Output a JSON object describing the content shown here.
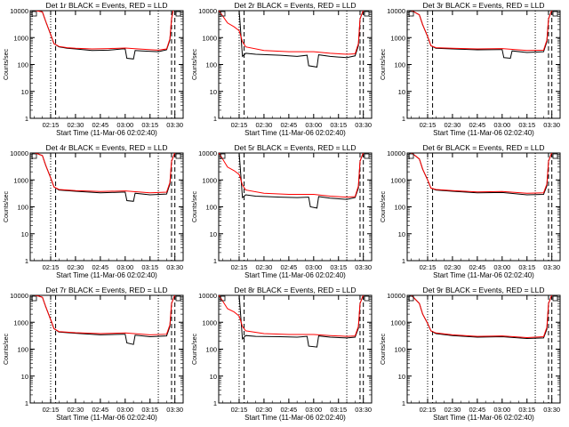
{
  "page": {
    "background": "#ffffff",
    "axis_color": "#000000",
    "events_color": "#000000",
    "lld_color": "#ff0000"
  },
  "chart_data": [
    {
      "type": "line",
      "title": "Det 1r BLACK = Events, RED = LLD",
      "xlabel": "Start Time (11-Mar-06 02:02:40)",
      "ylabel": "Counts/sec",
      "x_ticks": [
        "02:15",
        "02:30",
        "02:45",
        "03:00",
        "03:15",
        "03:30"
      ],
      "y_ticks": [
        "1",
        "10",
        "100",
        "1000",
        "10000"
      ],
      "ylim": [
        1,
        10000
      ],
      "yscale": "log",
      "series": [
        {
          "name": "Events",
          "color": "#000000",
          "x": [
            "02:05",
            "02:10",
            "02:12",
            "02:15",
            "02:17",
            "02:20",
            "02:25",
            "02:30",
            "02:40",
            "02:50",
            "02:58",
            "03:00",
            "03:01",
            "03:05",
            "03:06",
            "03:10",
            "03:20",
            "03:25",
            "03:27",
            "03:28",
            "03:29",
            "03:30"
          ],
          "y": [
            12000,
            9000,
            4000,
            1300,
            600,
            450,
            400,
            380,
            330,
            340,
            380,
            380,
            170,
            160,
            330,
            320,
            300,
            350,
            800,
            5000,
            12000,
            12000
          ]
        },
        {
          "name": "LLD",
          "color": "#ff0000",
          "x": [
            "02:05",
            "02:10",
            "02:12",
            "02:15",
            "02:17",
            "02:20",
            "02:25",
            "02:30",
            "02:40",
            "02:50",
            "03:00",
            "03:10",
            "03:20",
            "03:25",
            "03:27",
            "03:28",
            "03:29",
            "03:30"
          ],
          "y": [
            12000,
            9000,
            4000,
            1300,
            600,
            470,
            420,
            400,
            380,
            390,
            410,
            370,
            340,
            380,
            900,
            5000,
            12000,
            12000
          ]
        }
      ],
      "dotted_vlines": [
        "02:15",
        "03:20"
      ],
      "dashed_vlines": [
        "02:18",
        "03:28",
        "03:30"
      ]
    },
    {
      "type": "line",
      "title": "Det 2r BLACK = Events, RED = LLD",
      "xlabel": "Start Time (11-Mar-06 02:02:40)",
      "ylabel": "Counts/sec",
      "x_ticks": [
        "02:15",
        "02:30",
        "02:45",
        "03:00",
        "03:15",
        "03:30"
      ],
      "y_ticks": [
        "1",
        "10",
        "100",
        "1000",
        "10000"
      ],
      "ylim": [
        1,
        10000
      ],
      "yscale": "log",
      "series": [
        {
          "name": "Events",
          "color": "#000000",
          "x": [
            "02:15",
            "02:17",
            "02:19",
            "02:25",
            "02:40",
            "02:50",
            "02:56",
            "02:57",
            "03:02",
            "03:03",
            "03:10",
            "03:20",
            "03:25",
            "03:27",
            "03:28",
            "03:30"
          ],
          "y": [
            12000,
            200,
            260,
            240,
            220,
            200,
            220,
            90,
            80,
            230,
            200,
            180,
            210,
            500,
            5000,
            12000
          ]
        },
        {
          "name": "LLD",
          "color": "#ff0000",
          "x": [
            "02:02",
            "02:08",
            "02:12",
            "02:15",
            "02:17",
            "02:19",
            "02:30",
            "02:45",
            "03:00",
            "03:10",
            "03:20",
            "03:25",
            "03:27",
            "03:28",
            "03:30"
          ],
          "y": [
            12000,
            3500,
            2500,
            1800,
            700,
            450,
            330,
            300,
            300,
            260,
            240,
            250,
            600,
            5000,
            12000
          ]
        }
      ],
      "dotted_vlines": [
        "02:15",
        "03:20"
      ],
      "dashed_vlines": [
        "02:18",
        "03:28",
        "03:30"
      ]
    },
    {
      "type": "line",
      "title": "Det 3r BLACK = Events, RED = LLD",
      "xlabel": "Start Time (11-Mar-06 02:02:40)",
      "ylabel": "Counts/sec",
      "x_ticks": [
        "02:15",
        "02:30",
        "02:45",
        "03:00",
        "03:15",
        "03:30"
      ],
      "y_ticks": [
        "1",
        "10",
        "100",
        "1000",
        "10000"
      ],
      "ylim": [
        1,
        10000
      ],
      "yscale": "log",
      "series": [
        {
          "name": "Events",
          "color": "#000000",
          "x": [
            "02:05",
            "02:10",
            "02:12",
            "02:15",
            "02:17",
            "02:20",
            "02:30",
            "02:45",
            "02:58",
            "03:00",
            "03:01",
            "03:05",
            "03:06",
            "03:15",
            "03:25",
            "03:27",
            "03:28",
            "03:30"
          ],
          "y": [
            12000,
            7000,
            3000,
            1100,
            500,
            400,
            380,
            350,
            360,
            360,
            180,
            170,
            320,
            280,
            300,
            700,
            5000,
            12000
          ]
        },
        {
          "name": "LLD",
          "color": "#ff0000",
          "x": [
            "02:05",
            "02:10",
            "02:12",
            "02:15",
            "02:17",
            "02:20",
            "02:30",
            "02:45",
            "03:00",
            "03:15",
            "03:25",
            "03:27",
            "03:28",
            "03:30"
          ],
          "y": [
            12000,
            7000,
            3000,
            1100,
            500,
            420,
            400,
            380,
            390,
            330,
            340,
            800,
            5000,
            12000
          ]
        }
      ],
      "dotted_vlines": [
        "02:15",
        "03:20"
      ],
      "dashed_vlines": [
        "02:18",
        "03:28",
        "03:30"
      ]
    },
    {
      "type": "line",
      "title": "Det 4r BLACK = Events, RED = LLD",
      "xlabel": "Start Time (11-Mar-06 02:02:40)",
      "ylabel": "Counts/sec",
      "x_ticks": [
        "02:15",
        "02:30",
        "02:45",
        "03:00",
        "03:15",
        "03:30"
      ],
      "y_ticks": [
        "1",
        "10",
        "100",
        "1000",
        "10000"
      ],
      "ylim": [
        1,
        10000
      ],
      "yscale": "log",
      "series": [
        {
          "name": "Events",
          "color": "#000000",
          "x": [
            "02:05",
            "02:10",
            "02:12",
            "02:15",
            "02:17",
            "02:20",
            "02:30",
            "02:45",
            "02:58",
            "03:00",
            "03:01",
            "03:05",
            "03:06",
            "03:15",
            "03:25",
            "03:27",
            "03:28",
            "03:30"
          ],
          "y": [
            12000,
            8000,
            3500,
            1200,
            550,
            420,
            380,
            330,
            350,
            350,
            170,
            160,
            320,
            280,
            300,
            700,
            5000,
            12000
          ]
        },
        {
          "name": "LLD",
          "color": "#ff0000",
          "x": [
            "02:05",
            "02:10",
            "02:12",
            "02:15",
            "02:17",
            "02:20",
            "02:30",
            "02:45",
            "03:00",
            "03:15",
            "03:25",
            "03:27",
            "03:28",
            "03:30"
          ],
          "y": [
            12000,
            8000,
            3500,
            1200,
            550,
            440,
            400,
            370,
            390,
            330,
            350,
            800,
            5000,
            12000
          ]
        }
      ],
      "dotted_vlines": [
        "02:15",
        "03:20"
      ],
      "dashed_vlines": [
        "02:18",
        "03:28",
        "03:30"
      ]
    },
    {
      "type": "line",
      "title": "Det 5r BLACK = Events, RED = LLD",
      "xlabel": "Start Time (11-Mar-06 02:02:40)",
      "ylabel": "Counts/sec",
      "x_ticks": [
        "02:15",
        "02:30",
        "02:45",
        "03:00",
        "03:15",
        "03:30"
      ],
      "y_ticks": [
        "1",
        "10",
        "100",
        "1000",
        "10000"
      ],
      "ylim": [
        1,
        10000
      ],
      "yscale": "log",
      "series": [
        {
          "name": "Events",
          "color": "#000000",
          "x": [
            "02:15",
            "02:17",
            "02:19",
            "02:25",
            "02:40",
            "02:50",
            "02:57",
            "02:58",
            "03:02",
            "03:03",
            "03:10",
            "03:20",
            "03:25",
            "03:27",
            "03:28",
            "03:30"
          ],
          "y": [
            12000,
            220,
            280,
            250,
            230,
            220,
            230,
            100,
            90,
            240,
            210,
            190,
            220,
            500,
            5000,
            12000
          ]
        },
        {
          "name": "LLD",
          "color": "#ff0000",
          "x": [
            "02:02",
            "02:08",
            "02:12",
            "02:15",
            "02:17",
            "02:19",
            "02:30",
            "02:45",
            "03:00",
            "03:10",
            "03:20",
            "03:25",
            "03:27",
            "03:28",
            "03:30"
          ],
          "y": [
            12000,
            3000,
            2200,
            1600,
            650,
            420,
            320,
            290,
            290,
            250,
            230,
            240,
            600,
            5000,
            12000
          ]
        }
      ],
      "dotted_vlines": [
        "02:15",
        "03:20"
      ],
      "dashed_vlines": [
        "02:18",
        "03:28",
        "03:30"
      ]
    },
    {
      "type": "line",
      "title": "Det 6r BLACK = Events, RED = LLD",
      "xlabel": "Start Time (11-Mar-06 02:02:40)",
      "ylabel": "Counts/sec",
      "x_ticks": [
        "02:15",
        "02:30",
        "02:45",
        "03:00",
        "03:15",
        "03:30"
      ],
      "y_ticks": [
        "1",
        "10",
        "100",
        "1000",
        "10000"
      ],
      "ylim": [
        1,
        10000
      ],
      "yscale": "log",
      "series": [
        {
          "name": "Events",
          "color": "#000000",
          "x": [
            "02:05",
            "02:10",
            "02:12",
            "02:15",
            "02:17",
            "02:20",
            "02:30",
            "02:45",
            "03:00",
            "03:15",
            "03:25",
            "03:27",
            "03:28",
            "03:30"
          ],
          "y": [
            12000,
            6000,
            2500,
            1000,
            500,
            420,
            380,
            330,
            340,
            280,
            290,
            600,
            5000,
            12000
          ]
        },
        {
          "name": "LLD",
          "color": "#ff0000",
          "x": [
            "02:05",
            "02:10",
            "02:12",
            "02:15",
            "02:17",
            "02:20",
            "02:30",
            "02:45",
            "03:00",
            "03:15",
            "03:25",
            "03:27",
            "03:28",
            "03:30"
          ],
          "y": [
            12000,
            6000,
            2500,
            1000,
            500,
            440,
            400,
            360,
            370,
            320,
            330,
            700,
            5000,
            12000
          ]
        }
      ],
      "dotted_vlines": [
        "02:15",
        "03:20"
      ],
      "dashed_vlines": [
        "02:18",
        "03:28",
        "03:30"
      ]
    },
    {
      "type": "line",
      "title": "Det 7r BLACK = Events, RED = LLD",
      "xlabel": "Start Time (11-Mar-06 02:02:40)",
      "ylabel": "Counts/sec",
      "x_ticks": [
        "02:15",
        "02:30",
        "02:45",
        "03:00",
        "03:15",
        "03:30"
      ],
      "y_ticks": [
        "1",
        "10",
        "100",
        "1000",
        "10000"
      ],
      "ylim": [
        1,
        10000
      ],
      "yscale": "log",
      "series": [
        {
          "name": "Events",
          "color": "#000000",
          "x": [
            "02:05",
            "02:10",
            "02:12",
            "02:15",
            "02:17",
            "02:20",
            "02:30",
            "02:45",
            "02:58",
            "03:00",
            "03:01",
            "03:05",
            "03:06",
            "03:15",
            "03:25",
            "03:27",
            "03:28",
            "03:30"
          ],
          "y": [
            12000,
            8500,
            3800,
            1250,
            580,
            430,
            390,
            340,
            360,
            360,
            170,
            150,
            330,
            290,
            310,
            700,
            5000,
            12000
          ]
        },
        {
          "name": "LLD",
          "color": "#ff0000",
          "x": [
            "02:05",
            "02:10",
            "02:12",
            "02:15",
            "02:17",
            "02:20",
            "02:30",
            "02:45",
            "03:00",
            "03:15",
            "03:25",
            "03:27",
            "03:28",
            "03:30"
          ],
          "y": [
            12000,
            8500,
            3800,
            1250,
            580,
            450,
            410,
            380,
            400,
            340,
            360,
            800,
            5000,
            12000
          ]
        }
      ],
      "dotted_vlines": [
        "02:15",
        "03:20"
      ],
      "dashed_vlines": [
        "02:18",
        "03:28",
        "03:30"
      ]
    },
    {
      "type": "line",
      "title": "Det 8r BLACK = Events, RED = LLD",
      "xlabel": "Start Time (11-Mar-06 02:02:40)",
      "ylabel": "Counts/sec",
      "x_ticks": [
        "02:15",
        "02:30",
        "02:45",
        "03:00",
        "03:15",
        "03:30"
      ],
      "y_ticks": [
        "1",
        "10",
        "100",
        "1000",
        "10000"
      ],
      "ylim": [
        1,
        10000
      ],
      "yscale": "log",
      "series": [
        {
          "name": "Events",
          "color": "#000000",
          "x": [
            "02:15",
            "02:17",
            "02:19",
            "02:25",
            "02:40",
            "02:50",
            "02:56",
            "02:57",
            "03:02",
            "03:03",
            "03:10",
            "03:20",
            "03:25",
            "03:27",
            "03:28",
            "03:30"
          ],
          "y": [
            12000,
            240,
            320,
            300,
            290,
            280,
            300,
            130,
            120,
            310,
            280,
            260,
            280,
            600,
            5000,
            12000
          ]
        },
        {
          "name": "LLD",
          "color": "#ff0000",
          "x": [
            "02:02",
            "02:08",
            "02:12",
            "02:15",
            "02:17",
            "02:19",
            "02:30",
            "02:45",
            "03:00",
            "03:10",
            "03:20",
            "03:25",
            "03:27",
            "03:28",
            "03:30"
          ],
          "y": [
            12000,
            3200,
            2400,
            1700,
            700,
            480,
            380,
            350,
            350,
            320,
            300,
            310,
            700,
            5000,
            12000
          ]
        }
      ],
      "dotted_vlines": [
        "02:15",
        "03:20"
      ],
      "dashed_vlines": [
        "02:18",
        "03:28",
        "03:30"
      ]
    },
    {
      "type": "line",
      "title": "Det 9r BLACK = Events, RED = LLD",
      "xlabel": "Start Time (11-Mar-06 02:02:40)",
      "ylabel": "Counts/sec",
      "x_ticks": [
        "02:15",
        "02:30",
        "02:45",
        "03:00",
        "03:15",
        "03:30"
      ],
      "y_ticks": [
        "1",
        "10",
        "100",
        "1000",
        "10000"
      ],
      "ylim": [
        1,
        10000
      ],
      "yscale": "log",
      "series": [
        {
          "name": "Events",
          "color": "#000000",
          "x": [
            "02:05",
            "02:10",
            "02:12",
            "02:15",
            "02:17",
            "02:20",
            "02:30",
            "02:45",
            "03:00",
            "03:15",
            "03:25",
            "03:27",
            "03:28",
            "03:30"
          ],
          "y": [
            12000,
            5000,
            2000,
            900,
            480,
            380,
            320,
            280,
            290,
            250,
            260,
            550,
            5000,
            12000
          ]
        },
        {
          "name": "LLD",
          "color": "#ff0000",
          "x": [
            "02:05",
            "02:10",
            "02:12",
            "02:15",
            "02:17",
            "02:20",
            "02:30",
            "02:45",
            "03:00",
            "03:15",
            "03:25",
            "03:27",
            "03:28",
            "03:30"
          ],
          "y": [
            12000,
            5000,
            2000,
            900,
            480,
            400,
            340,
            300,
            310,
            270,
            290,
            650,
            5000,
            12000
          ]
        }
      ],
      "dotted_vlines": [
        "02:15",
        "03:20"
      ],
      "dashed_vlines": [
        "02:18",
        "03:28",
        "03:30"
      ]
    }
  ]
}
